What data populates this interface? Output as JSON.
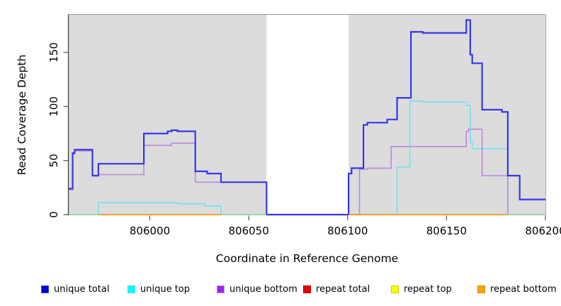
{
  "axes": {
    "x_label": "Coordinate in Reference Genome",
    "y_label": "Read Coverage Depth",
    "x_tick_labels": [
      "806000",
      "806050",
      "806100",
      "806150",
      "806200"
    ],
    "y_tick_labels": [
      "0",
      "50",
      "100",
      "150"
    ]
  },
  "legend": {
    "items": [
      {
        "label": "unique total",
        "fill": "#0000cd",
        "border": "#4343ff"
      },
      {
        "label": "unique top",
        "fill": "#00ffff",
        "border": "#5ad2e0"
      },
      {
        "label": "unique bottom",
        "fill": "#a020f0",
        "border": "#bb86dd"
      },
      {
        "label": "repeat total",
        "fill": "#e80000",
        "border": "#c40000"
      },
      {
        "label": "repeat top",
        "fill": "#ffff00",
        "border": "#cccc00"
      },
      {
        "label": "repeat bottom",
        "fill": "#ffa500",
        "border": "#d98500"
      }
    ]
  },
  "chart_data": {
    "type": "line",
    "subtype": "step",
    "title": "",
    "xlabel": "Coordinate in Reference Genome",
    "ylabel": "Read Coverage Depth",
    "xlim": [
      805959,
      806200
    ],
    "ylim": [
      0,
      185
    ],
    "x_ticks": [
      806000,
      806050,
      806100,
      806150,
      806200
    ],
    "y_ticks": [
      0,
      50,
      100,
      150
    ],
    "grid": "off",
    "legend_position": "bottom",
    "plot_bg": "#dcdcdc",
    "masked_region": [
      806059,
      806100.5
    ],
    "series": [
      {
        "name": "unique total",
        "color": "#3636e8",
        "width": 2.2,
        "draw": true,
        "points": [
          [
            805959,
            24
          ],
          [
            805961,
            57
          ],
          [
            805962,
            60
          ],
          [
            805971,
            36
          ],
          [
            805974,
            47
          ],
          [
            805997,
            75
          ],
          [
            806009,
            77
          ],
          [
            806011,
            78
          ],
          [
            806014,
            77
          ],
          [
            806023,
            40
          ],
          [
            806029,
            38
          ],
          [
            806036,
            30
          ],
          [
            806059,
            0
          ],
          [
            806100.5,
            38
          ],
          [
            806102,
            43
          ],
          [
            806108,
            83
          ],
          [
            806110,
            85
          ],
          [
            806120,
            88
          ],
          [
            806125,
            108
          ],
          [
            806132,
            169
          ],
          [
            806138,
            168
          ],
          [
            806160,
            180
          ],
          [
            806162,
            148
          ],
          [
            806163,
            140
          ],
          [
            806168,
            97
          ],
          [
            806178,
            95
          ],
          [
            806181,
            36
          ],
          [
            806187,
            14
          ],
          [
            806200,
            14
          ]
        ]
      },
      {
        "name": "unique top",
        "color": "#6fe2ee",
        "width": 1.6,
        "draw": true,
        "points": [
          [
            805959,
            0
          ],
          [
            805974,
            11
          ],
          [
            806014,
            10
          ],
          [
            806028,
            8
          ],
          [
            806036,
            0
          ],
          [
            806125,
            44
          ],
          [
            806131.5,
            105
          ],
          [
            806138,
            104
          ],
          [
            806160,
            101
          ],
          [
            806162,
            67
          ],
          [
            806163,
            61
          ],
          [
            806181,
            0
          ],
          [
            806200,
            0
          ]
        ]
      },
      {
        "name": "unique bottom",
        "color": "#bd87de",
        "width": 1.6,
        "draw": true,
        "points": [
          [
            805959,
            23
          ],
          [
            805961,
            56
          ],
          [
            805962,
            59
          ],
          [
            805971,
            36
          ],
          [
            805974,
            37
          ],
          [
            805997,
            64
          ],
          [
            806011,
            66
          ],
          [
            806023,
            30
          ],
          [
            806059,
            0
          ],
          [
            806106,
            42
          ],
          [
            806110,
            43
          ],
          [
            806122,
            63
          ],
          [
            806160,
            77
          ],
          [
            806161,
            79
          ],
          [
            806168,
            36
          ],
          [
            806181,
            0
          ],
          [
            806200,
            0
          ]
        ]
      },
      {
        "name": "repeat total",
        "color": "#cc0000",
        "width": 1.5,
        "draw": false,
        "points": [
          [
            805959,
            0
          ],
          [
            806200,
            0
          ]
        ]
      },
      {
        "name": "repeat top",
        "color": "#eeee00",
        "width": 1.5,
        "draw": false,
        "points": [
          [
            805959,
            0
          ],
          [
            806200,
            0
          ]
        ]
      },
      {
        "name": "repeat bottom",
        "color": "#ff9517",
        "width": 1.5,
        "draw": false,
        "points": [
          [
            805959,
            0
          ],
          [
            806200,
            0
          ]
        ]
      }
    ],
    "baseline_segments": [
      {
        "from": 805959,
        "to": 805974,
        "color": "#97d7a5"
      },
      {
        "from": 805974,
        "to": 806036,
        "color": "#ff9517"
      },
      {
        "from": 806036,
        "to": 806059,
        "color": "#97d7a5"
      },
      {
        "from": 806100.5,
        "to": 806181,
        "color": "#ff9517"
      },
      {
        "from": 806181,
        "to": 806200,
        "color": "#97d7a5"
      }
    ]
  }
}
